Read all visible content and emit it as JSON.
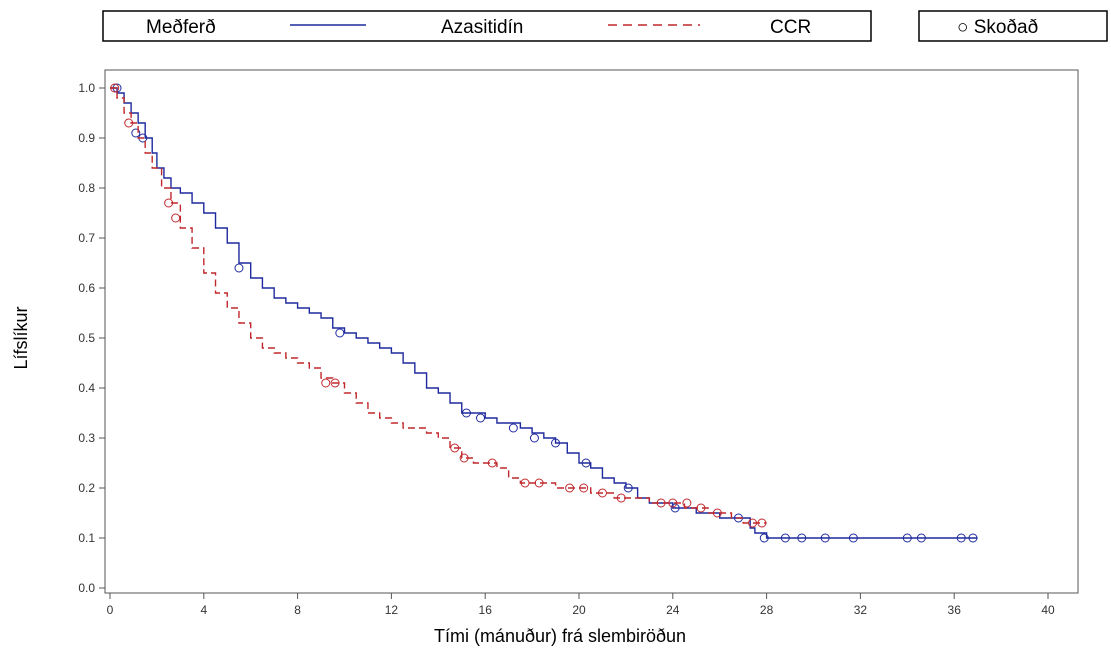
{
  "legend": {
    "treatment_label": "Meðferð",
    "series_1_label": "Azasitidín",
    "series_2_label": "CCR",
    "censored_label": "○ Skoðað"
  },
  "chart_data": {
    "type": "line",
    "step": true,
    "xlabel": "Tími (mánuður) frá slembiröðun",
    "ylabel": "Lífslíkur",
    "xlim": [
      0,
      41
    ],
    "ylim": [
      0,
      1.05
    ],
    "x_ticks": [
      "0",
      "4",
      "8",
      "12",
      "16",
      "20",
      "24",
      "28",
      "32",
      "36",
      "40"
    ],
    "y_ticks": [
      "0.0",
      "0.1",
      "0.2",
      "0.3",
      "0.4",
      "0.5",
      "0.6",
      "0.7",
      "0.8",
      "0.9",
      "1.0"
    ],
    "grid": false,
    "legend_position": "top",
    "censor_marker": "○",
    "series": [
      {
        "name": "Azasitidín",
        "color": "#1f2a9e",
        "dash": "solid",
        "points": [
          [
            0,
            1.0
          ],
          [
            0.3,
            0.99
          ],
          [
            0.6,
            0.97
          ],
          [
            0.9,
            0.95
          ],
          [
            1.2,
            0.93
          ],
          [
            1.5,
            0.9
          ],
          [
            1.8,
            0.87
          ],
          [
            2.0,
            0.84
          ],
          [
            2.3,
            0.82
          ],
          [
            2.6,
            0.8
          ],
          [
            3.0,
            0.79
          ],
          [
            3.5,
            0.77
          ],
          [
            4.0,
            0.75
          ],
          [
            4.5,
            0.72
          ],
          [
            5.0,
            0.69
          ],
          [
            5.5,
            0.65
          ],
          [
            6.0,
            0.62
          ],
          [
            6.5,
            0.6
          ],
          [
            7.0,
            0.58
          ],
          [
            7.5,
            0.57
          ],
          [
            8.0,
            0.56
          ],
          [
            8.5,
            0.55
          ],
          [
            9.0,
            0.54
          ],
          [
            9.5,
            0.52
          ],
          [
            10.0,
            0.51
          ],
          [
            10.5,
            0.5
          ],
          [
            11.0,
            0.49
          ],
          [
            11.5,
            0.48
          ],
          [
            12.0,
            0.47
          ],
          [
            12.5,
            0.45
          ],
          [
            13.0,
            0.43
          ],
          [
            13.5,
            0.4
          ],
          [
            14.0,
            0.39
          ],
          [
            14.5,
            0.37
          ],
          [
            15.0,
            0.35
          ],
          [
            15.5,
            0.35
          ],
          [
            16.0,
            0.34
          ],
          [
            16.5,
            0.33
          ],
          [
            17.0,
            0.33
          ],
          [
            17.5,
            0.32
          ],
          [
            18.0,
            0.31
          ],
          [
            18.5,
            0.3
          ],
          [
            19.0,
            0.29
          ],
          [
            19.5,
            0.27
          ],
          [
            20.0,
            0.25
          ],
          [
            20.5,
            0.24
          ],
          [
            21.0,
            0.22
          ],
          [
            21.5,
            0.21
          ],
          [
            22.0,
            0.2
          ],
          [
            22.5,
            0.18
          ],
          [
            23.0,
            0.17
          ],
          [
            23.5,
            0.17
          ],
          [
            24.0,
            0.16
          ],
          [
            24.5,
            0.16
          ],
          [
            25.0,
            0.15
          ],
          [
            25.5,
            0.15
          ],
          [
            26.0,
            0.14
          ],
          [
            26.5,
            0.14
          ],
          [
            27.0,
            0.14
          ],
          [
            27.3,
            0.12
          ],
          [
            27.5,
            0.11
          ],
          [
            28.0,
            0.1
          ],
          [
            37.0,
            0.1
          ]
        ],
        "censored": [
          [
            0.3,
            1.0
          ],
          [
            1.1,
            0.91
          ],
          [
            1.4,
            0.9
          ],
          [
            5.5,
            0.64
          ],
          [
            9.8,
            0.51
          ],
          [
            15.2,
            0.35
          ],
          [
            15.8,
            0.34
          ],
          [
            17.2,
            0.32
          ],
          [
            18.1,
            0.3
          ],
          [
            19.0,
            0.29
          ],
          [
            20.3,
            0.25
          ],
          [
            22.1,
            0.2
          ],
          [
            24.1,
            0.16
          ],
          [
            26.8,
            0.14
          ],
          [
            27.9,
            0.1
          ],
          [
            28.8,
            0.1
          ],
          [
            29.5,
            0.1
          ],
          [
            30.5,
            0.1
          ],
          [
            31.7,
            0.1
          ],
          [
            34.0,
            0.1
          ],
          [
            34.6,
            0.1
          ],
          [
            36.3,
            0.1
          ],
          [
            36.8,
            0.1
          ]
        ]
      },
      {
        "name": "CCR",
        "color": "#c0282d",
        "dash": "dashed",
        "points": [
          [
            0,
            1.0
          ],
          [
            0.3,
            0.98
          ],
          [
            0.6,
            0.95
          ],
          [
            0.9,
            0.93
          ],
          [
            1.2,
            0.9
          ],
          [
            1.5,
            0.87
          ],
          [
            1.8,
            0.84
          ],
          [
            2.2,
            0.8
          ],
          [
            2.6,
            0.77
          ],
          [
            3.0,
            0.72
          ],
          [
            3.5,
            0.68
          ],
          [
            4.0,
            0.63
          ],
          [
            4.5,
            0.59
          ],
          [
            5.0,
            0.56
          ],
          [
            5.5,
            0.53
          ],
          [
            6.0,
            0.5
          ],
          [
            6.5,
            0.48
          ],
          [
            7.0,
            0.47
          ],
          [
            7.5,
            0.46
          ],
          [
            8.0,
            0.45
          ],
          [
            8.5,
            0.44
          ],
          [
            9.0,
            0.42
          ],
          [
            9.5,
            0.41
          ],
          [
            10.0,
            0.39
          ],
          [
            10.5,
            0.37
          ],
          [
            11.0,
            0.35
          ],
          [
            11.5,
            0.34
          ],
          [
            12.0,
            0.33
          ],
          [
            12.5,
            0.32
          ],
          [
            13.0,
            0.32
          ],
          [
            13.5,
            0.31
          ],
          [
            14.0,
            0.3
          ],
          [
            14.5,
            0.28
          ],
          [
            15.0,
            0.26
          ],
          [
            15.5,
            0.25
          ],
          [
            16.0,
            0.25
          ],
          [
            16.5,
            0.24
          ],
          [
            17.0,
            0.22
          ],
          [
            17.5,
            0.21
          ],
          [
            18.0,
            0.21
          ],
          [
            18.5,
            0.21
          ],
          [
            19.0,
            0.2
          ],
          [
            19.5,
            0.2
          ],
          [
            20.0,
            0.2
          ],
          [
            20.5,
            0.19
          ],
          [
            21.0,
            0.19
          ],
          [
            21.5,
            0.18
          ],
          [
            22.0,
            0.18
          ],
          [
            22.5,
            0.18
          ],
          [
            23.0,
            0.17
          ],
          [
            23.5,
            0.17
          ],
          [
            24.0,
            0.17
          ],
          [
            24.5,
            0.16
          ],
          [
            25.0,
            0.16
          ],
          [
            25.5,
            0.15
          ],
          [
            26.0,
            0.15
          ],
          [
            26.5,
            0.14
          ],
          [
            27.0,
            0.13
          ],
          [
            28.0,
            0.13
          ]
        ],
        "censored": [
          [
            0.2,
            1.0
          ],
          [
            0.8,
            0.93
          ],
          [
            2.5,
            0.77
          ],
          [
            2.8,
            0.74
          ],
          [
            9.2,
            0.41
          ],
          [
            9.6,
            0.41
          ],
          [
            14.7,
            0.28
          ],
          [
            15.1,
            0.26
          ],
          [
            16.3,
            0.25
          ],
          [
            17.7,
            0.21
          ],
          [
            18.3,
            0.21
          ],
          [
            19.6,
            0.2
          ],
          [
            20.2,
            0.2
          ],
          [
            21.0,
            0.19
          ],
          [
            21.8,
            0.18
          ],
          [
            23.5,
            0.17
          ],
          [
            24.0,
            0.17
          ],
          [
            24.6,
            0.17
          ],
          [
            25.2,
            0.16
          ],
          [
            25.9,
            0.15
          ],
          [
            27.4,
            0.13
          ],
          [
            27.8,
            0.13
          ]
        ]
      }
    ]
  }
}
